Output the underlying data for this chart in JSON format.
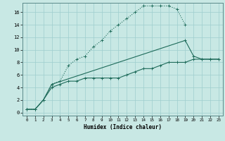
{
  "xlabel": "Humidex (Indice chaleur)",
  "x_values": [
    0,
    1,
    2,
    3,
    4,
    5,
    6,
    7,
    8,
    9,
    10,
    11,
    12,
    13,
    14,
    15,
    16,
    17,
    18,
    19,
    20,
    21,
    22,
    23
  ],
  "line1": [
    0.5,
    0.5,
    2.0,
    4.5,
    5.0,
    7.5,
    8.5,
    9.0,
    10.5,
    11.5,
    13.0,
    14.0,
    15.0,
    16.0,
    17.0,
    17.0,
    17.0,
    17.0,
    16.5,
    14.0,
    null,
    null,
    null,
    null
  ],
  "line2": [
    0.5,
    0.5,
    2.0,
    4.5,
    null,
    null,
    null,
    null,
    null,
    null,
    null,
    null,
    null,
    null,
    null,
    null,
    null,
    null,
    null,
    11.5,
    9.0,
    8.5,
    8.5,
    8.5
  ],
  "line3": [
    0.5,
    0.5,
    2.0,
    4.0,
    4.5,
    5.0,
    5.0,
    5.5,
    5.5,
    5.5,
    5.5,
    5.5,
    6.0,
    6.5,
    7.0,
    7.0,
    7.5,
    8.0,
    8.0,
    8.0,
    8.5,
    8.5,
    8.5,
    8.5
  ],
  "line_color": "#1E6B5A",
  "bg_color": "#C8E8E4",
  "grid_color": "#9ECECE",
  "ylim": [
    -0.5,
    17.5
  ],
  "xlim": [
    -0.5,
    23.5
  ],
  "yticks": [
    0,
    2,
    4,
    6,
    8,
    10,
    12,
    14,
    16
  ],
  "xticks": [
    0,
    1,
    2,
    3,
    4,
    5,
    6,
    7,
    8,
    9,
    10,
    11,
    12,
    13,
    14,
    15,
    16,
    17,
    18,
    19,
    20,
    21,
    22,
    23
  ]
}
